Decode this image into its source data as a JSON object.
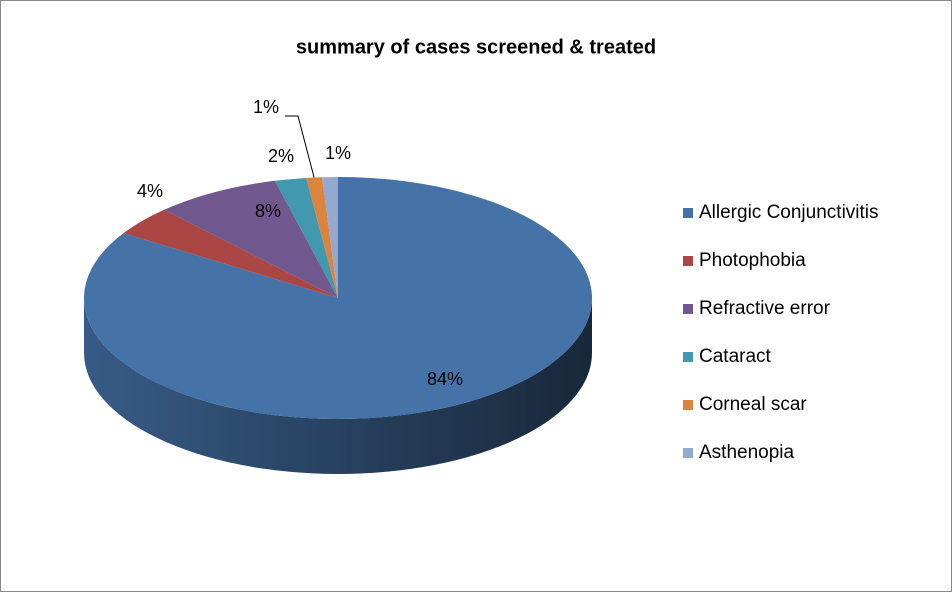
{
  "chart_data": {
    "type": "pie",
    "title": "summary of cases screened & treated",
    "categories": [
      "Allergic Conjunctivitis",
      "Photophobia",
      "Refractive error",
      "Cataract",
      "Corneal scar",
      "Asthenopia"
    ],
    "values": [
      84,
      4,
      8,
      2,
      1,
      1
    ],
    "value_labels": [
      "84%",
      "4%",
      "8%",
      "2%",
      "1%",
      "1%"
    ],
    "colors": [
      "#4572a7",
      "#aa4643",
      "#71588f",
      "#4198af",
      "#db843d",
      "#93a9cf"
    ],
    "legend": "right"
  }
}
